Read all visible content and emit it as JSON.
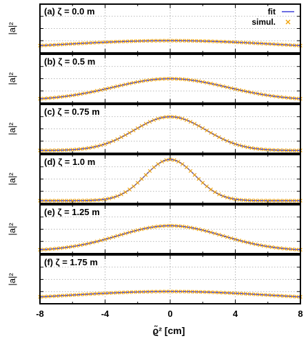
{
  "legend": {
    "fit_label": "fit",
    "simul_label": "simul."
  },
  "colors": {
    "fit": "#3b3fd9",
    "simul": "#f0a000",
    "frame": "#000000",
    "grid": "#a0a0a0"
  },
  "chart_data": {
    "type": "line",
    "xlabel": "ϱ̃² [cm]",
    "xlim": [
      -8,
      8
    ],
    "xticks": [
      "-8",
      "-4",
      "0",
      "4",
      "8"
    ],
    "ylabel": "|a|²",
    "grid": true,
    "legend_position": "top-right",
    "panels": [
      {
        "label": "(a) ζ = 0.0 m",
        "peak": 0.22,
        "width_cm": 6.6
      },
      {
        "label": "(b) ζ = 0.5 m",
        "peak": 0.5,
        "width_cm": 3.5
      },
      {
        "label": "(c) ζ = 0.75 m",
        "peak": 0.78,
        "width_cm": 2.2
      },
      {
        "label": "(d) ζ = 1.0 m",
        "peak": 0.95,
        "width_cm": 1.55
      },
      {
        "label": "(e) ζ = 1.25 m",
        "peak": 0.58,
        "width_cm": 3.2
      },
      {
        "label": "(f) ζ = 1.75 m",
        "peak": 0.22,
        "width_cm": 6.2
      }
    ],
    "series": [
      {
        "name": "fit",
        "style": "line"
      },
      {
        "name": "simul.",
        "style": "cross"
      }
    ]
  }
}
